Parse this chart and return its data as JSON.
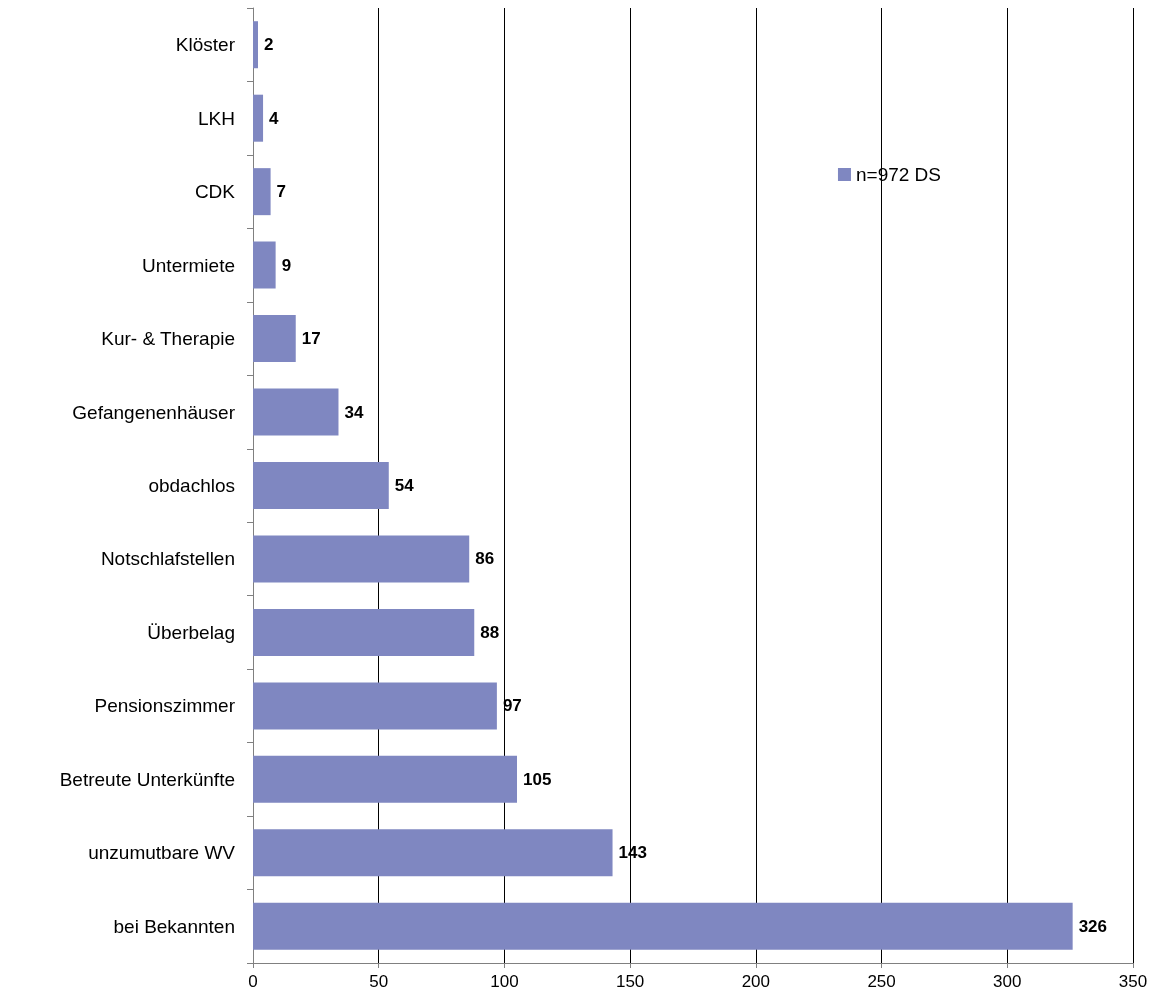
{
  "chart_data": {
    "type": "bar",
    "orientation": "horizontal",
    "categories": [
      "Klöster",
      "LKH",
      "CDK",
      "Untermiete",
      "Kur- & Therapie",
      "Gefangenenhäuser",
      "obdachlos",
      "Notschlafstellen",
      "Überbelag",
      "Pensionszimmer",
      "Betreute Unterkünfte",
      "unzumutbare WV",
      "bei Bekannten"
    ],
    "series": [
      {
        "name": "n=972 DS",
        "color": "#7f87c1",
        "values": [
          2,
          4,
          7,
          9,
          17,
          34,
          54,
          86,
          88,
          97,
          105,
          143,
          326
        ]
      }
    ],
    "xlim": [
      0,
      350
    ],
    "xticks": [
      0,
      50,
      100,
      150,
      200,
      250,
      300,
      350
    ],
    "grid": "x",
    "legend": "top right",
    "data_labels": true
  }
}
